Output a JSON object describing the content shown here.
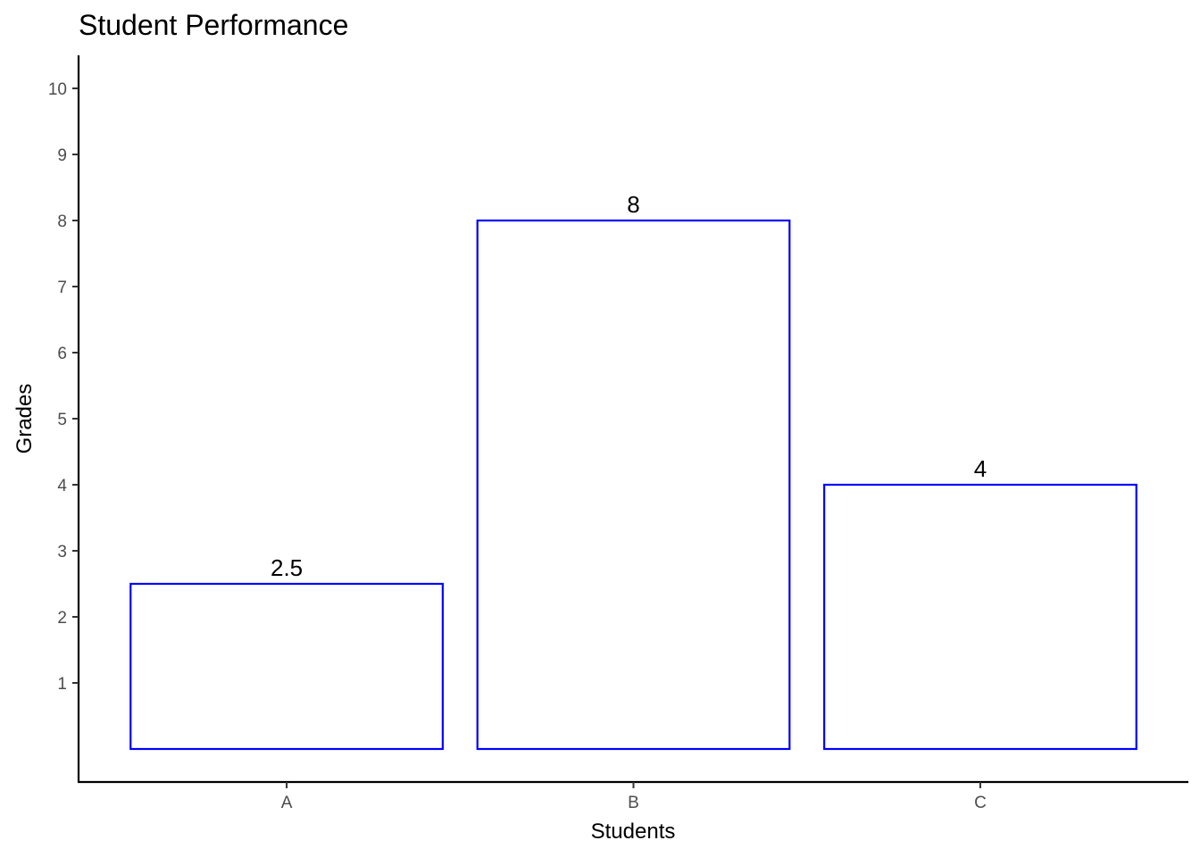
{
  "chart_data": {
    "type": "bar",
    "title": "Student Performance",
    "xlabel": "Students",
    "ylabel": "Grades",
    "categories": [
      "A",
      "B",
      "C"
    ],
    "values": [
      2.5,
      8,
      4
    ],
    "data_labels": [
      "2.5",
      "8",
      "4"
    ],
    "yticks": [
      1,
      2,
      3,
      4,
      5,
      6,
      7,
      8,
      9,
      10
    ],
    "ytick_labels": [
      "1",
      "2",
      "3",
      "4",
      "5",
      "6",
      "7",
      "8",
      "9",
      "10"
    ],
    "ylim": [
      -0.5,
      10.5
    ],
    "grid": false,
    "bar_fill": "#ffffff",
    "bar_outline": "#0000ff"
  }
}
